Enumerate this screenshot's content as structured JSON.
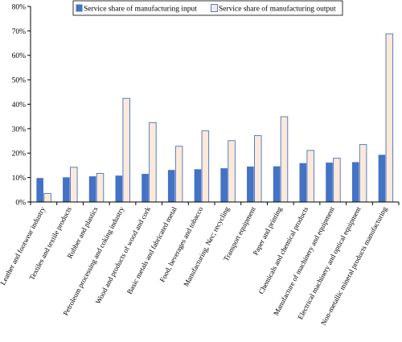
{
  "chart_data": {
    "type": "bar",
    "title": "",
    "xlabel": "",
    "ylabel": "",
    "ylim": [
      0,
      80
    ],
    "yticks": [
      0,
      10,
      20,
      30,
      40,
      50,
      60,
      70,
      80
    ],
    "ytick_labels": [
      "0%",
      "10%",
      "20%",
      "30%",
      "40%",
      "50%",
      "60%",
      "70%",
      "80%"
    ],
    "value_format": "percent",
    "grid": false,
    "legend_position": "top",
    "categories": [
      "Leather and footwear industry",
      "Textiles and textile products",
      "Rubber and plastics",
      "Petroleum processing and coking industry",
      "Wood and products of wood and cork",
      "Basic metals and fabricated metal",
      "Food, beverages and tobacco",
      "Manufacturing, Nec; recycling",
      "Transport equipment",
      "Paper and printing",
      "Chemicals and chemical products",
      "Manufacture of machinery and equipment",
      "Electrical machinery and optical equipment",
      "Non-metallic mineral products manufacturing"
    ],
    "series": [
      {
        "name": "Service share of manufacturing input",
        "color": "#4472C4",
        "values": [
          9.8,
          10.1,
          10.5,
          10.8,
          11.5,
          13.1,
          13.4,
          13.8,
          14.5,
          14.6,
          15.9,
          16.1,
          16.3,
          19.3
        ]
      },
      {
        "name": "Service share of manufacturing output",
        "color": "#FCE9D9",
        "edge_color": "#4472C4",
        "values": [
          3.5,
          14.2,
          11.7,
          42.4,
          32.5,
          22.8,
          29.1,
          25.1,
          27.2,
          34.9,
          21.1,
          17.9,
          23.5,
          68.8
        ]
      }
    ]
  }
}
